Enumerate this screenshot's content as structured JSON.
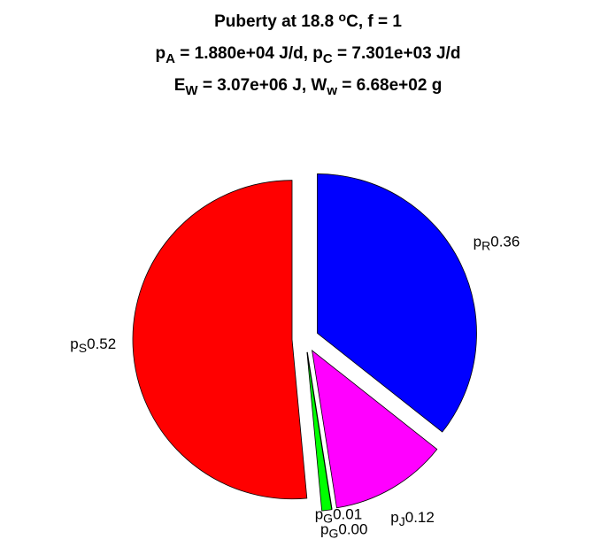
{
  "chart_data": {
    "type": "pie",
    "title": [
      [
        {
          "text": "Puberty at 18.8 "
        },
        {
          "text": "o",
          "shift": "sup"
        },
        {
          "text": "C, f = 1"
        }
      ],
      [
        {
          "text": "p"
        },
        {
          "text": "A",
          "shift": "sub"
        },
        {
          "text": " = 1.880e+04 J/d,  p"
        },
        {
          "text": "C",
          "shift": "sub"
        },
        {
          "text": " = 7.301e+03 J/d"
        }
      ],
      [
        {
          "text": "E"
        },
        {
          "text": "W",
          "shift": "sub"
        },
        {
          "text": " = 3.07e+06 J, W"
        },
        {
          "text": "w",
          "shift": "sub"
        },
        {
          "text": " = 6.68e+02 g"
        }
      ]
    ],
    "labels": [
      {
        "main": "p",
        "sub": "R"
      },
      {
        "main": "p",
        "sub": "J"
      },
      {
        "main": "p",
        "sub": "G"
      },
      {
        "main": "p",
        "sub": "G"
      },
      {
        "main": "p",
        "sub": "S"
      }
    ],
    "values": [
      0.36,
      0.12,
      0.0,
      0.01,
      0.52
    ],
    "value_labels": [
      "0.36",
      "0.12",
      "0.00",
      "0.01",
      "0.52"
    ],
    "colors": [
      "#0000ff",
      "#ff00ff",
      "#008000",
      "#00ff00",
      "#ff0000"
    ]
  }
}
